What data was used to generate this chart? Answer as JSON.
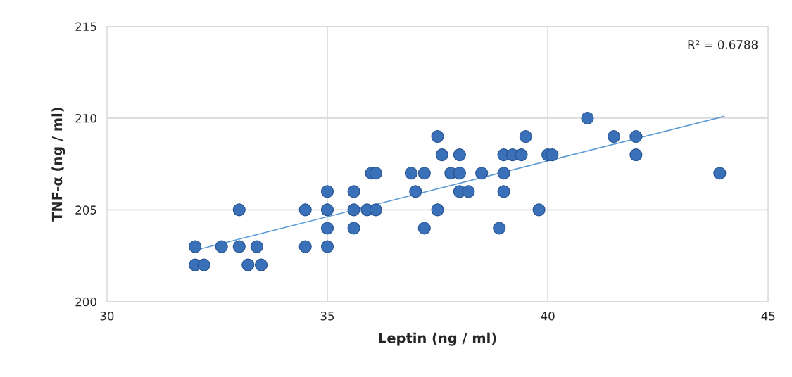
{
  "chart_data": {
    "type": "scatter",
    "xlabel": "Leptin (ng / ml)",
    "ylabel": "TNF-α (ng / ml)",
    "xlim": [
      30,
      45
    ],
    "xticks": [
      30,
      35,
      40,
      45
    ],
    "ylim": [
      200,
      215
    ],
    "yticks": [
      200,
      205,
      210,
      215
    ],
    "grid": true,
    "marker": "circle",
    "annotations": [
      "R² = 0.6788"
    ],
    "series": [
      {
        "color": "#3a70b8",
        "x": [
          32.0,
          32.0,
          32.2,
          32.6,
          33.0,
          33.0,
          33.2,
          33.4,
          33.5,
          34.5,
          34.5,
          35.0,
          35.0,
          35.0,
          35.0,
          35.6,
          35.6,
          35.6,
          35.9,
          36.0,
          36.1,
          36.1,
          36.9,
          37.0,
          37.2,
          37.2,
          37.5,
          37.5,
          37.6,
          37.8,
          38.0,
          38.0,
          38.0,
          38.2,
          38.5,
          39.0,
          39.0,
          39.0,
          38.9,
          39.2,
          39.4,
          39.5,
          39.8,
          40.0,
          40.1,
          40.9,
          41.5,
          42.0,
          42.0,
          43.9
        ],
        "values": [
          203,
          202,
          202,
          203,
          205,
          203,
          202,
          203,
          202,
          205,
          203,
          206,
          205,
          204,
          203,
          206,
          205,
          204,
          205,
          207,
          207,
          205,
          207,
          206,
          207,
          204,
          209,
          205,
          208,
          207,
          208,
          207,
          206,
          206,
          207,
          208,
          207,
          206,
          204,
          208,
          208,
          209,
          205,
          208,
          208,
          210,
          209,
          209,
          208,
          207
        ]
      },
      {
        "type": "line",
        "color": "#5b9bd5",
        "marker": "none",
        "x": [
          32,
          44
        ],
        "values": [
          202.8,
          210.1
        ]
      }
    ]
  }
}
